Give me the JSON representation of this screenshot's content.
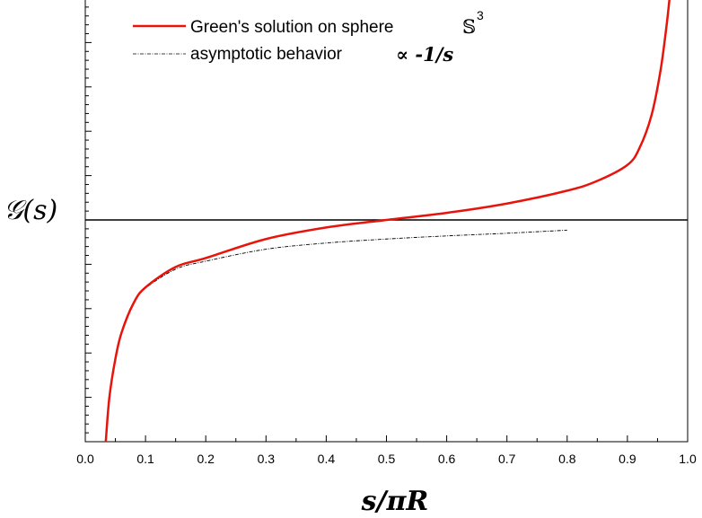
{
  "chart_data": {
    "type": "line",
    "xlabel": "s/πR",
    "ylabel": "𝒢(s)",
    "xlim": [
      0.0,
      1.0
    ],
    "ylim": [
      -5.0,
      5.0
    ],
    "x_ticks": [
      0.0,
      0.1,
      0.2,
      0.3,
      0.4,
      0.5,
      0.6,
      0.7,
      0.8,
      0.9,
      1.0
    ],
    "x_tick_labels": [
      "0.0",
      "0.1",
      "0.2",
      "0.3",
      "0.4",
      "0.5",
      "0.6",
      "0.7",
      "0.8",
      "0.9",
      "1.0"
    ],
    "y_tick_labels_shown": false,
    "grid": false,
    "legend_position": "top-left",
    "reference_line": {
      "y": 0,
      "color": "#000000"
    },
    "series": [
      {
        "name": "Green's solution on sphere",
        "math_label": "𝕊",
        "math_superscript": "3",
        "color": "#e8140c",
        "style": "solid",
        "x": [
          0.034,
          0.04,
          0.05,
          0.06,
          0.08,
          0.1,
          0.15,
          0.2,
          0.3,
          0.4,
          0.5,
          0.6,
          0.7,
          0.8,
          0.85,
          0.9,
          0.92,
          0.94,
          0.955,
          0.965,
          0.97
        ],
        "y": [
          -5.0,
          -4.0,
          -3.13,
          -2.55,
          -1.88,
          -1.52,
          -1.06,
          -0.86,
          -0.43,
          -0.17,
          0.0,
          0.16,
          0.37,
          0.66,
          0.88,
          1.24,
          1.62,
          2.36,
          3.37,
          4.38,
          5.0
        ]
      },
      {
        "name": "asymptotic behavior",
        "prop_label": "∝ -1/s",
        "color": "#000000",
        "style": "dash-dot",
        "x": [
          0.034,
          0.04,
          0.05,
          0.06,
          0.08,
          0.1,
          0.15,
          0.2,
          0.3,
          0.4,
          0.5,
          0.6,
          0.7,
          0.8
        ],
        "y": [
          -5.0,
          -4.0,
          -3.13,
          -2.55,
          -1.88,
          -1.54,
          -1.11,
          -0.93,
          -0.66,
          -0.52,
          -0.43,
          -0.36,
          -0.3,
          -0.23
        ]
      }
    ]
  }
}
